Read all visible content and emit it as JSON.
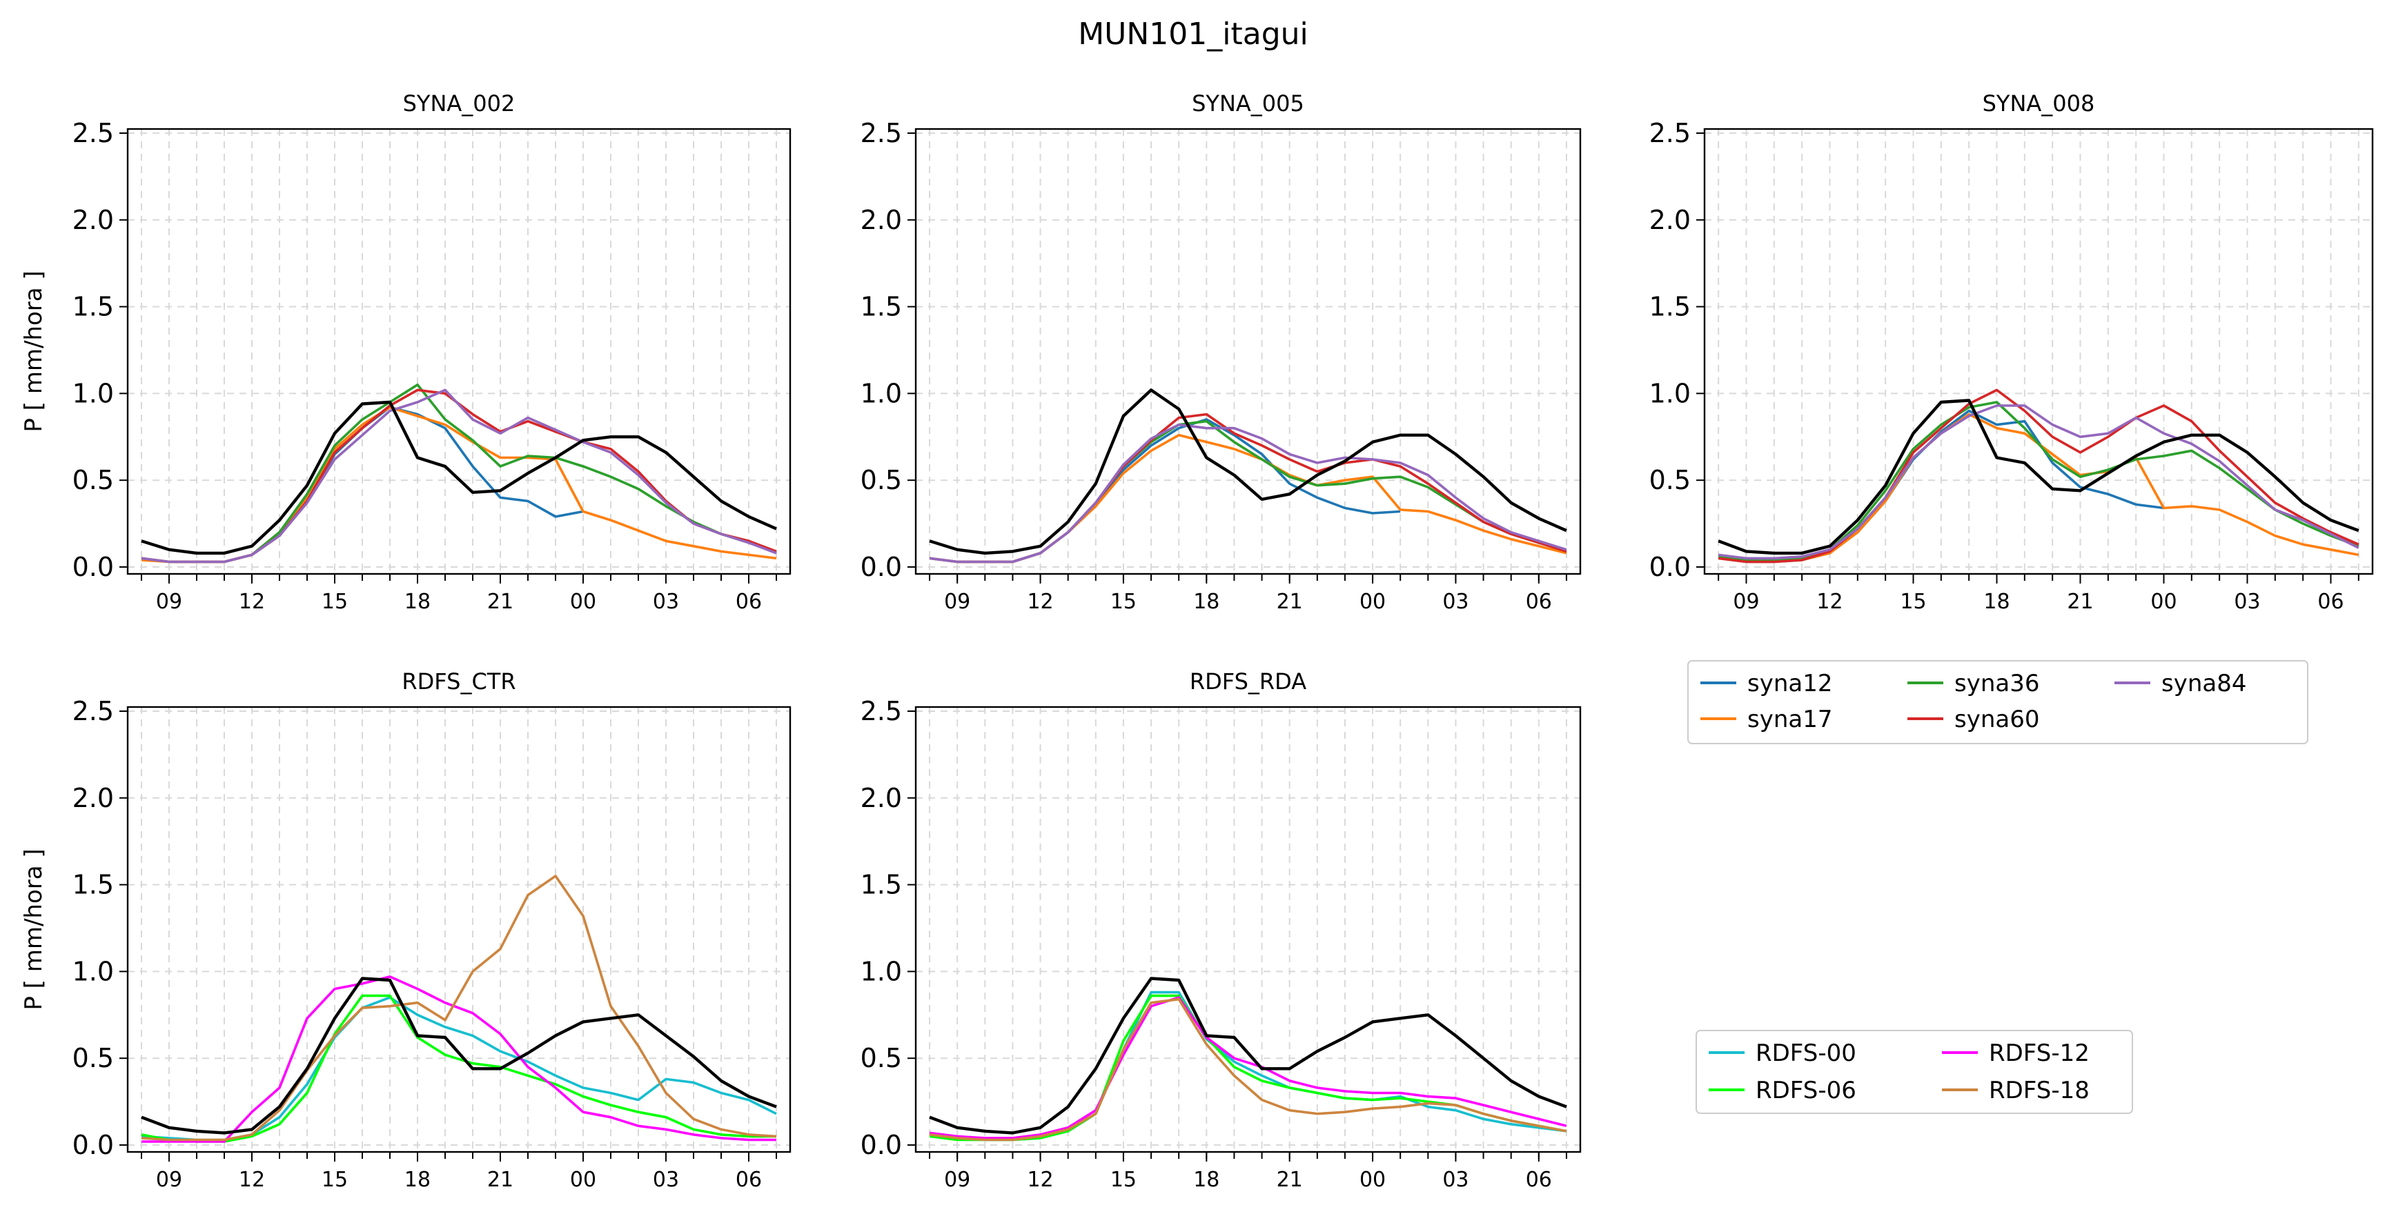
{
  "suptitle": "MUN101_itagui",
  "ylabel": "P [ mm/hora ]",
  "yticks": [
    "0.0",
    "0.5",
    "1.0",
    "1.5",
    "2.0",
    "2.5"
  ],
  "xticks": [
    "09",
    "12",
    "15",
    "18",
    "21",
    "00",
    "03",
    "06"
  ],
  "legends": [
    {
      "name": "syna-legend",
      "items": [
        {
          "label": "syna12",
          "color": "#1f77b4"
        },
        {
          "label": "syna36",
          "color": "#2ca02c"
        },
        {
          "label": "syna84",
          "color": "#9467bd"
        },
        {
          "label": "syna17",
          "color": "#ff7f0e"
        },
        {
          "label": "syna60",
          "color": "#d62728"
        }
      ]
    },
    {
      "name": "rdfs-legend",
      "items": [
        {
          "label": "RDFS-00",
          "color": "#17becf"
        },
        {
          "label": "RDFS-12",
          "color": "#ff00ff"
        },
        {
          "label": "RDFS-06",
          "color": "#00ff00"
        },
        {
          "label": "RDFS-18",
          "color": "#cd853f"
        }
      ]
    }
  ],
  "chart_data": [
    {
      "type": "line",
      "title": "SYNA_002",
      "x": [
        "08",
        "09",
        "10",
        "11",
        "12",
        "13",
        "14",
        "15",
        "16",
        "17",
        "18",
        "19",
        "20",
        "21",
        "22",
        "23",
        "00",
        "01",
        "02",
        "03",
        "04",
        "05",
        "06",
        "07"
      ],
      "ylim": [
        0,
        2.5
      ],
      "ylabel": "P [ mm/hora ]",
      "grid": true,
      "series": [
        {
          "name": "syna12",
          "color": "#1f77b4",
          "values": [
            0.05,
            0.03,
            0.03,
            0.03,
            0.07,
            0.18,
            0.38,
            0.65,
            0.8,
            0.92,
            0.88,
            0.8,
            0.58,
            0.4,
            0.38,
            0.29,
            0.32,
            null,
            null,
            null,
            null,
            null,
            null,
            null
          ]
        },
        {
          "name": "syna17",
          "color": "#ff7f0e",
          "values": [
            0.04,
            0.03,
            0.03,
            0.03,
            0.07,
            0.2,
            0.4,
            0.68,
            0.82,
            0.92,
            0.87,
            0.82,
            0.72,
            0.63,
            0.63,
            0.62,
            0.32,
            0.27,
            0.21,
            0.15,
            0.12,
            0.09,
            0.07,
            0.05
          ]
        },
        {
          "name": "syna36",
          "color": "#2ca02c",
          "values": [
            0.05,
            0.03,
            0.03,
            0.03,
            0.07,
            0.2,
            0.42,
            0.7,
            0.85,
            0.95,
            1.05,
            0.85,
            0.73,
            0.58,
            0.64,
            0.63,
            0.58,
            0.52,
            0.45,
            0.35,
            0.26,
            0.19,
            0.14,
            0.09
          ]
        },
        {
          "name": "syna60",
          "color": "#d62728",
          "values": [
            0.05,
            0.03,
            0.03,
            0.03,
            0.07,
            0.18,
            0.38,
            0.66,
            0.8,
            0.93,
            1.02,
            1.0,
            0.88,
            0.78,
            0.84,
            0.78,
            0.72,
            0.68,
            0.55,
            0.38,
            0.25,
            0.19,
            0.15,
            0.09
          ]
        },
        {
          "name": "syna84",
          "color": "#9467bd",
          "values": [
            0.05,
            0.03,
            0.03,
            0.03,
            0.07,
            0.18,
            0.37,
            0.62,
            0.76,
            0.9,
            0.95,
            1.02,
            0.85,
            0.77,
            0.86,
            0.79,
            0.72,
            0.66,
            0.53,
            0.37,
            0.25,
            0.19,
            0.14,
            0.08
          ]
        },
        {
          "name": "",
          "color": "#000000",
          "values": [
            0.15,
            0.1,
            0.08,
            0.08,
            0.12,
            0.27,
            0.47,
            0.77,
            0.94,
            0.95,
            0.63,
            0.58,
            0.43,
            0.44,
            0.54,
            0.63,
            0.73,
            0.75,
            0.75,
            0.66,
            0.52,
            0.38,
            0.29,
            0.22
          ]
        }
      ]
    },
    {
      "type": "line",
      "title": "SYNA_005",
      "x": [
        "08",
        "09",
        "10",
        "11",
        "12",
        "13",
        "14",
        "15",
        "16",
        "17",
        "18",
        "19",
        "20",
        "21",
        "22",
        "23",
        "00",
        "01",
        "02",
        "03",
        "04",
        "05",
        "06",
        "07"
      ],
      "ylim": [
        0,
        2.5
      ],
      "grid": true,
      "series": [
        {
          "name": "syna12",
          "color": "#1f77b4",
          "values": [
            0.05,
            0.03,
            0.03,
            0.03,
            0.08,
            0.2,
            0.36,
            0.56,
            0.7,
            0.8,
            0.85,
            0.76,
            0.65,
            0.48,
            0.4,
            0.34,
            0.31,
            0.32,
            null,
            null,
            null,
            null,
            null,
            null
          ]
        },
        {
          "name": "syna17",
          "color": "#ff7f0e",
          "values": [
            0.05,
            0.03,
            0.03,
            0.03,
            0.08,
            0.2,
            0.35,
            0.54,
            0.67,
            0.76,
            0.72,
            0.68,
            0.62,
            0.53,
            0.47,
            0.5,
            0.52,
            0.33,
            0.32,
            0.27,
            0.21,
            0.16,
            0.12,
            0.08
          ]
        },
        {
          "name": "syna36",
          "color": "#2ca02c",
          "values": [
            0.05,
            0.03,
            0.03,
            0.03,
            0.08,
            0.2,
            0.37,
            0.58,
            0.72,
            0.82,
            0.84,
            0.72,
            0.62,
            0.52,
            0.47,
            0.48,
            0.51,
            0.52,
            0.46,
            0.36,
            0.26,
            0.19,
            0.14,
            0.09
          ]
        },
        {
          "name": "syna60",
          "color": "#d62728",
          "values": [
            0.05,
            0.03,
            0.03,
            0.03,
            0.08,
            0.2,
            0.37,
            0.58,
            0.73,
            0.86,
            0.88,
            0.77,
            0.7,
            0.62,
            0.55,
            0.6,
            0.62,
            0.58,
            0.48,
            0.37,
            0.26,
            0.19,
            0.14,
            0.09
          ]
        },
        {
          "name": "syna84",
          "color": "#9467bd",
          "values": [
            0.05,
            0.03,
            0.03,
            0.03,
            0.08,
            0.2,
            0.37,
            0.59,
            0.74,
            0.82,
            0.8,
            0.8,
            0.74,
            0.65,
            0.6,
            0.63,
            0.62,
            0.6,
            0.53,
            0.4,
            0.28,
            0.2,
            0.15,
            0.1
          ]
        },
        {
          "name": "",
          "color": "#000000",
          "values": [
            0.15,
            0.1,
            0.08,
            0.09,
            0.12,
            0.26,
            0.48,
            0.87,
            1.02,
            0.91,
            0.63,
            0.53,
            0.39,
            0.42,
            0.53,
            0.61,
            0.72,
            0.76,
            0.76,
            0.65,
            0.52,
            0.37,
            0.28,
            0.21
          ]
        }
      ]
    },
    {
      "type": "line",
      "title": "SYNA_008",
      "x": [
        "08",
        "09",
        "10",
        "11",
        "12",
        "13",
        "14",
        "15",
        "16",
        "17",
        "18",
        "19",
        "20",
        "21",
        "22",
        "23",
        "00",
        "01",
        "02",
        "03",
        "04",
        "05",
        "06",
        "07"
      ],
      "ylim": [
        0,
        2.5
      ],
      "grid": true,
      "series": [
        {
          "name": "syna12",
          "color": "#1f77b4",
          "values": [
            0.05,
            0.03,
            0.03,
            0.04,
            0.08,
            0.2,
            0.38,
            0.62,
            0.78,
            0.9,
            0.82,
            0.84,
            0.6,
            0.46,
            0.42,
            0.36,
            0.34,
            null,
            null,
            null,
            null,
            null,
            null,
            null
          ]
        },
        {
          "name": "syna17",
          "color": "#ff7f0e",
          "values": [
            0.05,
            0.03,
            0.03,
            0.04,
            0.08,
            0.2,
            0.38,
            0.63,
            0.77,
            0.88,
            0.8,
            0.77,
            0.65,
            0.53,
            0.55,
            0.63,
            0.34,
            0.35,
            0.33,
            0.26,
            0.18,
            0.13,
            0.1,
            0.07
          ]
        },
        {
          "name": "syna36",
          "color": "#2ca02c",
          "values": [
            0.06,
            0.04,
            0.04,
            0.05,
            0.1,
            0.24,
            0.44,
            0.68,
            0.82,
            0.92,
            0.95,
            0.8,
            0.62,
            0.52,
            0.56,
            0.62,
            0.64,
            0.67,
            0.57,
            0.45,
            0.33,
            0.25,
            0.18,
            0.12
          ]
        },
        {
          "name": "syna60",
          "color": "#d62728",
          "values": [
            0.05,
            0.03,
            0.03,
            0.04,
            0.09,
            0.22,
            0.4,
            0.66,
            0.8,
            0.94,
            1.02,
            0.9,
            0.75,
            0.66,
            0.75,
            0.86,
            0.93,
            0.84,
            0.67,
            0.52,
            0.37,
            0.28,
            0.2,
            0.13
          ]
        },
        {
          "name": "syna84",
          "color": "#9467bd",
          "values": [
            0.07,
            0.05,
            0.05,
            0.06,
            0.1,
            0.22,
            0.4,
            0.63,
            0.77,
            0.87,
            0.93,
            0.93,
            0.82,
            0.75,
            0.77,
            0.86,
            0.77,
            0.71,
            0.61,
            0.47,
            0.33,
            0.27,
            0.19,
            0.11
          ]
        },
        {
          "name": "",
          "color": "#000000",
          "values": [
            0.15,
            0.09,
            0.08,
            0.08,
            0.12,
            0.27,
            0.47,
            0.77,
            0.95,
            0.96,
            0.63,
            0.6,
            0.45,
            0.44,
            0.54,
            0.64,
            0.72,
            0.76,
            0.76,
            0.66,
            0.52,
            0.37,
            0.27,
            0.21
          ]
        }
      ]
    },
    {
      "type": "line",
      "title": "RDFS_CTR",
      "x": [
        "08",
        "09",
        "10",
        "11",
        "12",
        "13",
        "14",
        "15",
        "16",
        "17",
        "18",
        "19",
        "20",
        "21",
        "22",
        "23",
        "00",
        "01",
        "02",
        "03",
        "04",
        "05",
        "06",
        "07"
      ],
      "ylim": [
        0,
        2.5
      ],
      "ylabel": "P [ mm/hora ]",
      "grid": true,
      "series": [
        {
          "name": "RDFS-00",
          "color": "#17becf",
          "values": [
            0.05,
            0.04,
            0.03,
            0.03,
            0.06,
            0.16,
            0.35,
            0.62,
            0.79,
            0.85,
            0.75,
            0.68,
            0.63,
            0.54,
            0.48,
            0.4,
            0.33,
            0.3,
            0.26,
            0.38,
            0.36,
            0.3,
            0.26,
            0.18
          ]
        },
        {
          "name": "RDFS-06",
          "color": "#00ff00",
          "values": [
            0.06,
            0.03,
            0.02,
            0.02,
            0.05,
            0.12,
            0.3,
            0.64,
            0.86,
            0.86,
            0.62,
            0.52,
            0.47,
            0.45,
            0.4,
            0.35,
            0.28,
            0.23,
            0.19,
            0.16,
            0.09,
            0.06,
            0.05,
            0.05
          ]
        },
        {
          "name": "RDFS-12",
          "color": "#ff00ff",
          "values": [
            0.02,
            0.02,
            0.02,
            0.02,
            0.19,
            0.33,
            0.73,
            0.9,
            0.93,
            0.97,
            0.9,
            0.82,
            0.76,
            0.64,
            0.45,
            0.33,
            0.19,
            0.16,
            0.11,
            0.09,
            0.06,
            0.04,
            0.03,
            0.03
          ]
        },
        {
          "name": "RDFS-18",
          "color": "#cd853f",
          "values": [
            0.04,
            0.03,
            0.03,
            0.03,
            0.06,
            0.2,
            0.43,
            0.63,
            0.79,
            0.8,
            0.82,
            0.72,
            1.0,
            1.13,
            1.44,
            1.55,
            1.32,
            0.8,
            0.57,
            0.3,
            0.15,
            0.09,
            0.06,
            0.05
          ]
        },
        {
          "name": "",
          "color": "#000000",
          "values": [
            0.16,
            0.1,
            0.08,
            0.07,
            0.09,
            0.22,
            0.44,
            0.73,
            0.96,
            0.95,
            0.63,
            0.62,
            0.44,
            0.44,
            0.53,
            0.63,
            0.71,
            0.73,
            0.75,
            0.63,
            0.51,
            0.37,
            0.28,
            0.22
          ]
        }
      ]
    },
    {
      "type": "line",
      "title": "RDFS_RDA",
      "x": [
        "08",
        "09",
        "10",
        "11",
        "12",
        "13",
        "14",
        "15",
        "16",
        "17",
        "18",
        "19",
        "20",
        "21",
        "22",
        "23",
        "00",
        "01",
        "02",
        "03",
        "04",
        "05",
        "06",
        "07"
      ],
      "ylim": [
        0,
        2.5
      ],
      "grid": true,
      "series": [
        {
          "name": "RDFS-00",
          "color": "#17becf",
          "values": [
            0.06,
            0.04,
            0.03,
            0.03,
            0.04,
            0.08,
            0.18,
            0.55,
            0.88,
            0.88,
            0.61,
            0.48,
            0.4,
            0.33,
            0.3,
            0.27,
            0.26,
            0.28,
            0.22,
            0.2,
            0.15,
            0.12,
            0.1,
            0.08
          ]
        },
        {
          "name": "RDFS-06",
          "color": "#00ff00",
          "values": [
            0.05,
            0.03,
            0.03,
            0.03,
            0.04,
            0.08,
            0.18,
            0.6,
            0.86,
            0.86,
            0.62,
            0.45,
            0.37,
            0.33,
            0.3,
            0.27,
            0.26,
            0.27,
            0.25,
            0.23,
            0.18,
            0.14,
            0.11,
            0.08
          ]
        },
        {
          "name": "RDFS-12",
          "color": "#ff00ff",
          "values": [
            0.07,
            0.05,
            0.04,
            0.04,
            0.06,
            0.1,
            0.2,
            0.52,
            0.8,
            0.85,
            0.62,
            0.5,
            0.45,
            0.37,
            0.33,
            0.31,
            0.3,
            0.3,
            0.28,
            0.27,
            0.23,
            0.19,
            0.15,
            0.11
          ]
        },
        {
          "name": "RDFS-18",
          "color": "#cd853f",
          "values": [
            0.06,
            0.04,
            0.03,
            0.03,
            0.05,
            0.09,
            0.18,
            0.55,
            0.82,
            0.84,
            0.58,
            0.4,
            0.26,
            0.2,
            0.18,
            0.19,
            0.21,
            0.22,
            0.24,
            0.23,
            0.18,
            0.14,
            0.11,
            0.08
          ]
        },
        {
          "name": "",
          "color": "#000000",
          "values": [
            0.16,
            0.1,
            0.08,
            0.07,
            0.1,
            0.22,
            0.44,
            0.73,
            0.96,
            0.95,
            0.63,
            0.62,
            0.44,
            0.44,
            0.54,
            0.62,
            0.71,
            0.73,
            0.75,
            0.63,
            0.5,
            0.37,
            0.28,
            0.22
          ]
        }
      ]
    }
  ]
}
